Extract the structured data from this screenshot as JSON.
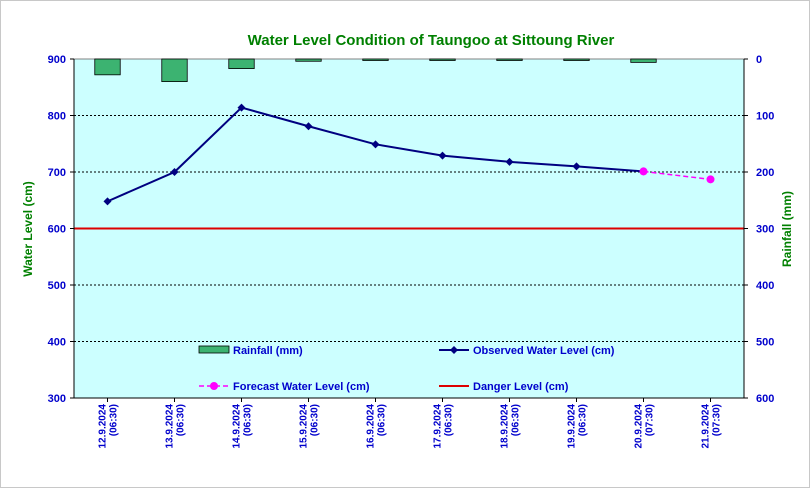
{
  "chart_data": {
    "type": "line",
    "title": "Water Level Condition of Taungoo at  Sittoung River",
    "ylabel": "Water Level (cm)",
    "y2label": "Rainfall (mm)",
    "ylim": [
      300,
      900
    ],
    "y2lim": [
      0,
      600
    ],
    "y2_inverted": true,
    "yticks": [
      "900",
      "800",
      "700",
      "600",
      "500",
      "400",
      "300"
    ],
    "y2ticks": [
      "0",
      "100",
      "200",
      "300",
      "400",
      "500",
      "600"
    ],
    "grid": true,
    "categories": [
      {
        "date": "12.9.2024",
        "time": "(06:30)"
      },
      {
        "date": "13.9.2024",
        "time": "(06:30)"
      },
      {
        "date": "14.9.2024",
        "time": "(06:30)"
      },
      {
        "date": "15.9.2024",
        "time": "(06:30)"
      },
      {
        "date": "16.9.2024",
        "time": "(06:30)"
      },
      {
        "date": "17.9.2024",
        "time": "(06:30)"
      },
      {
        "date": "18.9.2024",
        "time": "(06:30)"
      },
      {
        "date": "19.9.2024",
        "time": "(06:30)"
      },
      {
        "date": "20.9.2024",
        "time": "(07:30)"
      },
      {
        "date": "21.9.2024",
        "time": "(07:30)"
      }
    ],
    "series": [
      {
        "name": "Rainfall (mm)",
        "kind": "bar",
        "axis": "right",
        "color": "#3cb371",
        "values": [
          28,
          40,
          17,
          4,
          0,
          0,
          2,
          2,
          6,
          null
        ]
      },
      {
        "name": "Observed Water Level (cm)",
        "kind": "line",
        "axis": "left",
        "color": "#000080",
        "values": [
          648,
          700,
          814,
          781,
          749,
          729,
          718,
          710,
          701,
          null
        ]
      },
      {
        "name": "Forecast Water Level (cm)",
        "kind": "dashed-line",
        "axis": "left",
        "color": "#ff00ff",
        "values": [
          null,
          null,
          null,
          null,
          null,
          null,
          null,
          null,
          701,
          687
        ]
      },
      {
        "name": "Danger Level (cm)",
        "kind": "hline",
        "axis": "left",
        "color": "#dd0000",
        "value": 600
      }
    ],
    "legend": {
      "placement": "bottom-inside",
      "entries": [
        "Rainfall (mm)",
        "Observed Water Level (cm)",
        "Forecast Water Level (cm)",
        "Danger Level (cm)"
      ]
    },
    "plot_background": "#ccffff"
  }
}
